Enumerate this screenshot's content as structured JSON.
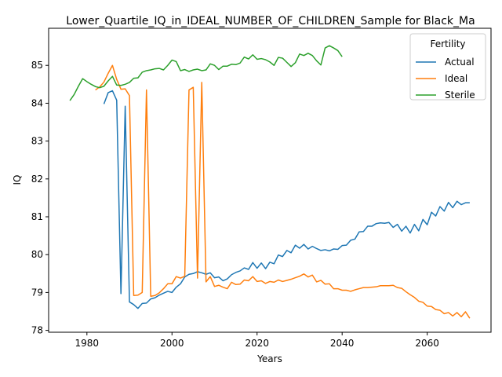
{
  "chart_data": {
    "type": "line",
    "title": "Lower_Quartile_IQ_in_IDEAL_NUMBER_OF_CHILDREN_Sample for Black_Ma",
    "xlabel": "Years",
    "ylabel": "IQ",
    "xlim": [
      1971,
      2075
    ],
    "ylim": [
      77.95,
      85.98
    ],
    "x_ticks": [
      1980,
      2000,
      2020,
      2040,
      2060
    ],
    "y_ticks": [
      78,
      79,
      80,
      81,
      82,
      83,
      84,
      85
    ],
    "grid": false,
    "legend": {
      "title": "Fertility",
      "placement": "top-right"
    },
    "series": [
      {
        "name": "Actual",
        "color": "#1f77b4",
        "points": [
          [
            1984,
            83.98
          ],
          [
            1985,
            84.28
          ],
          [
            1986,
            84.33
          ],
          [
            1987,
            84.08
          ],
          [
            1988,
            78.97
          ],
          [
            1989,
            83.92
          ],
          [
            1990,
            78.75
          ],
          [
            1991,
            78.68
          ],
          [
            1992,
            78.58
          ],
          [
            1993,
            78.71
          ],
          [
            1994,
            78.72
          ],
          [
            1995,
            78.83
          ],
          [
            1996,
            78.86
          ],
          [
            1997,
            78.93
          ],
          [
            1998,
            78.98
          ],
          [
            1999,
            79.03
          ],
          [
            2000,
            79.0
          ],
          [
            2001,
            79.14
          ],
          [
            2002,
            79.23
          ],
          [
            2003,
            79.41
          ],
          [
            2004,
            79.48
          ],
          [
            2005,
            79.5
          ],
          [
            2006,
            79.55
          ],
          [
            2007,
            79.52
          ],
          [
            2008,
            79.48
          ],
          [
            2009,
            79.52
          ],
          [
            2010,
            79.39
          ],
          [
            2011,
            79.41
          ],
          [
            2012,
            79.31
          ],
          [
            2013,
            79.36
          ],
          [
            2014,
            79.47
          ],
          [
            2015,
            79.53
          ],
          [
            2016,
            79.57
          ],
          [
            2017,
            79.65
          ],
          [
            2018,
            79.61
          ],
          [
            2019,
            79.79
          ],
          [
            2020,
            79.64
          ],
          [
            2021,
            79.78
          ],
          [
            2022,
            79.63
          ],
          [
            2023,
            79.8
          ],
          [
            2024,
            79.76
          ],
          [
            2025,
            79.99
          ],
          [
            2026,
            79.95
          ],
          [
            2027,
            80.11
          ],
          [
            2028,
            80.05
          ],
          [
            2029,
            80.25
          ],
          [
            2030,
            80.17
          ],
          [
            2031,
            80.27
          ],
          [
            2032,
            80.15
          ],
          [
            2033,
            80.22
          ],
          [
            2034,
            80.16
          ],
          [
            2035,
            80.11
          ],
          [
            2036,
            80.13
          ],
          [
            2037,
            80.1
          ],
          [
            2038,
            80.15
          ],
          [
            2039,
            80.14
          ],
          [
            2040,
            80.24
          ],
          [
            2041,
            80.25
          ],
          [
            2042,
            80.38
          ],
          [
            2043,
            80.41
          ],
          [
            2044,
            80.6
          ],
          [
            2045,
            80.61
          ],
          [
            2046,
            80.75
          ],
          [
            2047,
            80.75
          ],
          [
            2048,
            80.82
          ],
          [
            2049,
            80.84
          ],
          [
            2050,
            80.83
          ],
          [
            2051,
            80.85
          ],
          [
            2052,
            80.72
          ],
          [
            2053,
            80.8
          ],
          [
            2054,
            80.62
          ],
          [
            2055,
            80.75
          ],
          [
            2056,
            80.57
          ],
          [
            2057,
            80.8
          ],
          [
            2058,
            80.63
          ],
          [
            2059,
            80.93
          ],
          [
            2060,
            80.79
          ],
          [
            2061,
            81.12
          ],
          [
            2062,
            81.02
          ],
          [
            2063,
            81.27
          ],
          [
            2064,
            81.15
          ],
          [
            2065,
            81.38
          ],
          [
            2066,
            81.24
          ],
          [
            2067,
            81.41
          ],
          [
            2068,
            81.32
          ],
          [
            2069,
            81.37
          ],
          [
            2070,
            81.37
          ]
        ]
      },
      {
        "name": "Ideal",
        "color": "#ff7f0e",
        "points": [
          [
            1982,
            84.35
          ],
          [
            1983,
            84.43
          ],
          [
            1984,
            84.56
          ],
          [
            1985,
            84.79
          ],
          [
            1986,
            85.0
          ],
          [
            1987,
            84.63
          ],
          [
            1988,
            84.37
          ],
          [
            1989,
            84.38
          ],
          [
            1990,
            84.2
          ],
          [
            1991,
            78.92
          ],
          [
            1992,
            78.93
          ],
          [
            1993,
            79.0
          ],
          [
            1994,
            84.35
          ],
          [
            1995,
            78.9
          ],
          [
            1996,
            78.92
          ],
          [
            1997,
            78.99
          ],
          [
            1998,
            79.1
          ],
          [
            1999,
            79.23
          ],
          [
            2000,
            79.23
          ],
          [
            2001,
            79.42
          ],
          [
            2002,
            79.38
          ],
          [
            2003,
            79.43
          ],
          [
            2004,
            84.35
          ],
          [
            2005,
            84.42
          ],
          [
            2006,
            79.38
          ],
          [
            2007,
            84.55
          ],
          [
            2008,
            79.28
          ],
          [
            2009,
            79.42
          ],
          [
            2010,
            79.16
          ],
          [
            2011,
            79.19
          ],
          [
            2012,
            79.14
          ],
          [
            2013,
            79.1
          ],
          [
            2014,
            79.27
          ],
          [
            2015,
            79.21
          ],
          [
            2016,
            79.22
          ],
          [
            2017,
            79.33
          ],
          [
            2018,
            79.31
          ],
          [
            2019,
            79.42
          ],
          [
            2020,
            79.29
          ],
          [
            2021,
            79.31
          ],
          [
            2022,
            79.24
          ],
          [
            2023,
            79.29
          ],
          [
            2024,
            79.27
          ],
          [
            2025,
            79.33
          ],
          [
            2026,
            79.29
          ],
          [
            2027,
            79.32
          ],
          [
            2028,
            79.35
          ],
          [
            2029,
            79.39
          ],
          [
            2030,
            79.43
          ],
          [
            2031,
            79.49
          ],
          [
            2032,
            79.41
          ],
          [
            2033,
            79.46
          ],
          [
            2034,
            79.28
          ],
          [
            2035,
            79.32
          ],
          [
            2036,
            79.22
          ],
          [
            2037,
            79.23
          ],
          [
            2038,
            79.1
          ],
          [
            2039,
            79.1
          ],
          [
            2040,
            79.06
          ],
          [
            2041,
            79.06
          ],
          [
            2042,
            79.03
          ],
          [
            2043,
            79.07
          ],
          [
            2044,
            79.1
          ],
          [
            2045,
            79.13
          ],
          [
            2046,
            79.13
          ],
          [
            2047,
            79.14
          ],
          [
            2048,
            79.15
          ],
          [
            2049,
            79.18
          ],
          [
            2050,
            79.18
          ],
          [
            2051,
            79.18
          ],
          [
            2052,
            79.19
          ],
          [
            2053,
            79.13
          ],
          [
            2054,
            79.11
          ],
          [
            2055,
            79.02
          ],
          [
            2056,
            78.94
          ],
          [
            2057,
            78.87
          ],
          [
            2058,
            78.77
          ],
          [
            2059,
            78.74
          ],
          [
            2060,
            78.64
          ],
          [
            2061,
            78.63
          ],
          [
            2062,
            78.55
          ],
          [
            2063,
            78.53
          ],
          [
            2064,
            78.44
          ],
          [
            2065,
            78.47
          ],
          [
            2066,
            78.38
          ],
          [
            2067,
            78.47
          ],
          [
            2068,
            78.36
          ],
          [
            2069,
            78.49
          ],
          [
            2070,
            78.32
          ]
        ]
      },
      {
        "name": "Sterile",
        "color": "#2ca02c",
        "points": [
          [
            1976,
            84.07
          ],
          [
            1977,
            84.23
          ],
          [
            1978,
            84.45
          ],
          [
            1979,
            84.65
          ],
          [
            1980,
            84.57
          ],
          [
            1981,
            84.5
          ],
          [
            1982,
            84.44
          ],
          [
            1983,
            84.41
          ],
          [
            1984,
            84.45
          ],
          [
            1985,
            84.59
          ],
          [
            1986,
            84.71
          ],
          [
            1987,
            84.48
          ],
          [
            1988,
            84.47
          ],
          [
            1989,
            84.5
          ],
          [
            1990,
            84.55
          ],
          [
            1991,
            84.66
          ],
          [
            1992,
            84.67
          ],
          [
            1993,
            84.82
          ],
          [
            1994,
            84.86
          ],
          [
            1995,
            84.88
          ],
          [
            1996,
            84.91
          ],
          [
            1997,
            84.92
          ],
          [
            1998,
            84.88
          ],
          [
            1999,
            85.0
          ],
          [
            2000,
            85.14
          ],
          [
            2001,
            85.1
          ],
          [
            2002,
            84.86
          ],
          [
            2003,
            84.89
          ],
          [
            2004,
            84.84
          ],
          [
            2005,
            84.88
          ],
          [
            2006,
            84.9
          ],
          [
            2007,
            84.86
          ],
          [
            2008,
            84.88
          ],
          [
            2009,
            85.04
          ],
          [
            2010,
            85.0
          ],
          [
            2011,
            84.89
          ],
          [
            2012,
            84.98
          ],
          [
            2013,
            84.98
          ],
          [
            2014,
            85.03
          ],
          [
            2015,
            85.02
          ],
          [
            2016,
            85.06
          ],
          [
            2017,
            85.22
          ],
          [
            2018,
            85.17
          ],
          [
            2019,
            85.28
          ],
          [
            2020,
            85.16
          ],
          [
            2021,
            85.18
          ],
          [
            2022,
            85.15
          ],
          [
            2023,
            85.09
          ],
          [
            2024,
            85.0
          ],
          [
            2025,
            85.21
          ],
          [
            2026,
            85.19
          ],
          [
            2027,
            85.08
          ],
          [
            2028,
            84.97
          ],
          [
            2029,
            85.07
          ],
          [
            2030,
            85.3
          ],
          [
            2031,
            85.26
          ],
          [
            2032,
            85.32
          ],
          [
            2033,
            85.26
          ],
          [
            2034,
            85.12
          ],
          [
            2035,
            85.01
          ],
          [
            2036,
            85.46
          ],
          [
            2037,
            85.52
          ],
          [
            2038,
            85.46
          ],
          [
            2039,
            85.39
          ],
          [
            2040,
            85.23
          ]
        ]
      }
    ]
  }
}
